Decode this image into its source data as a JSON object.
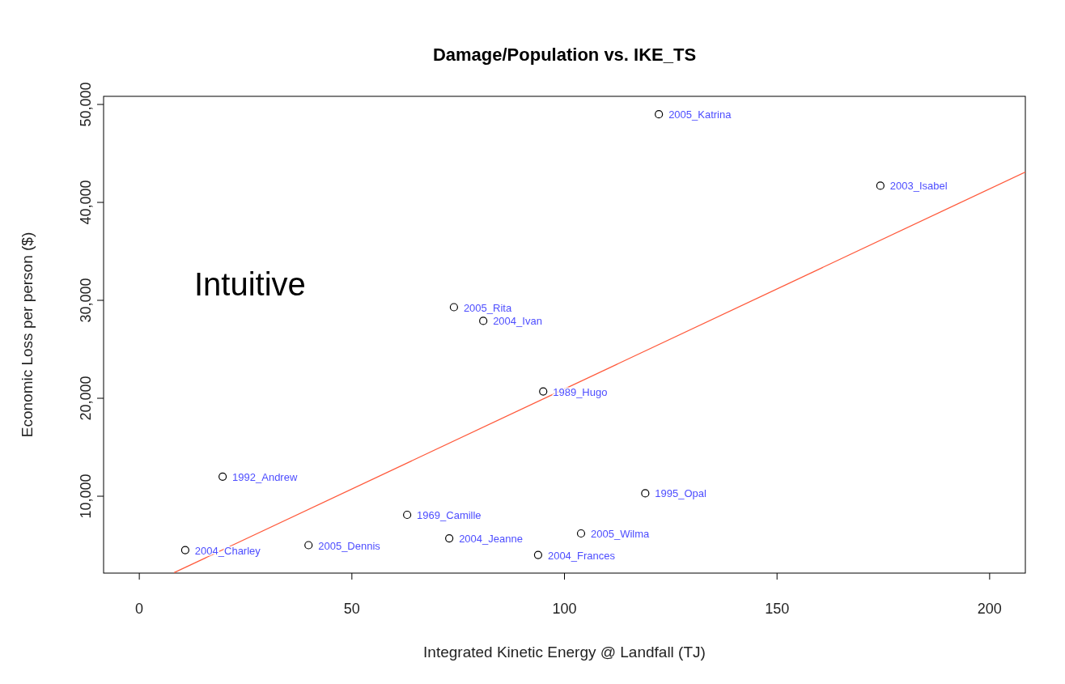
{
  "chart_data": {
    "type": "scatter",
    "title": "Damage/Population vs. IKE_TS",
    "xlabel": "Integrated Kinetic Energy @ Landfall (TJ)",
    "ylabel": "Economic Loss per person ($)",
    "xlim": [
      -8.4,
      208.4
    ],
    "ylim": [
      2150,
      50830
    ],
    "xticks": [
      0,
      50,
      100,
      150,
      200
    ],
    "yticks": [
      {
        "value": 10000,
        "label": "10,000"
      },
      {
        "value": 20000,
        "label": "20,000"
      },
      {
        "value": 30000,
        "label": "30,000"
      },
      {
        "value": 40000,
        "label": "40,000"
      },
      {
        "value": 50000,
        "label": "50,000"
      }
    ],
    "grid": false,
    "marker": "circle",
    "series": [
      {
        "color": "#000000",
        "x": [
          122.2,
          174.3,
          74.0,
          80.9,
          95.0,
          19.6,
          119.0,
          63.0,
          72.9,
          103.9,
          39.8,
          10.8,
          93.8
        ],
        "values": [
          49000,
          41700,
          29300,
          27900,
          20700,
          12000,
          10300,
          8100,
          5700,
          6200,
          5000,
          4500,
          4000
        ]
      },
      {
        "type": "line",
        "marker": "none",
        "color": "#ff5a3c",
        "x": [
          8.2,
          208.4
        ],
        "values": [
          2200,
          43100
        ]
      }
    ],
    "annotations": [
      {
        "text": "2005_Katrina",
        "x": 122.2,
        "y": 49000
      },
      {
        "text": "2003_Isabel",
        "x": 174.3,
        "y": 41700
      },
      {
        "text": "2005_Rita",
        "x": 74.0,
        "y": 29300
      },
      {
        "text": "2004_Ivan",
        "x": 80.9,
        "y": 27900
      },
      {
        "text": "1989_Hugo",
        "x": 95.0,
        "y": 20700
      },
      {
        "text": "1992_Andrew",
        "x": 19.6,
        "y": 12000
      },
      {
        "text": "1995_Opal",
        "x": 119.0,
        "y": 10300
      },
      {
        "text": "1969_Camille",
        "x": 63.0,
        "y": 8100
      },
      {
        "text": "2004_Jeanne",
        "x": 72.9,
        "y": 5700
      },
      {
        "text": "2005_Wilma",
        "x": 103.9,
        "y": 6200
      },
      {
        "text": "2005_Dennis",
        "x": 39.8,
        "y": 5000
      },
      {
        "text": "2004_Charley",
        "x": 10.8,
        "y": 4500
      },
      {
        "text": "2004_Frances",
        "x": 93.8,
        "y": 4000
      },
      "Intuitive"
    ]
  }
}
